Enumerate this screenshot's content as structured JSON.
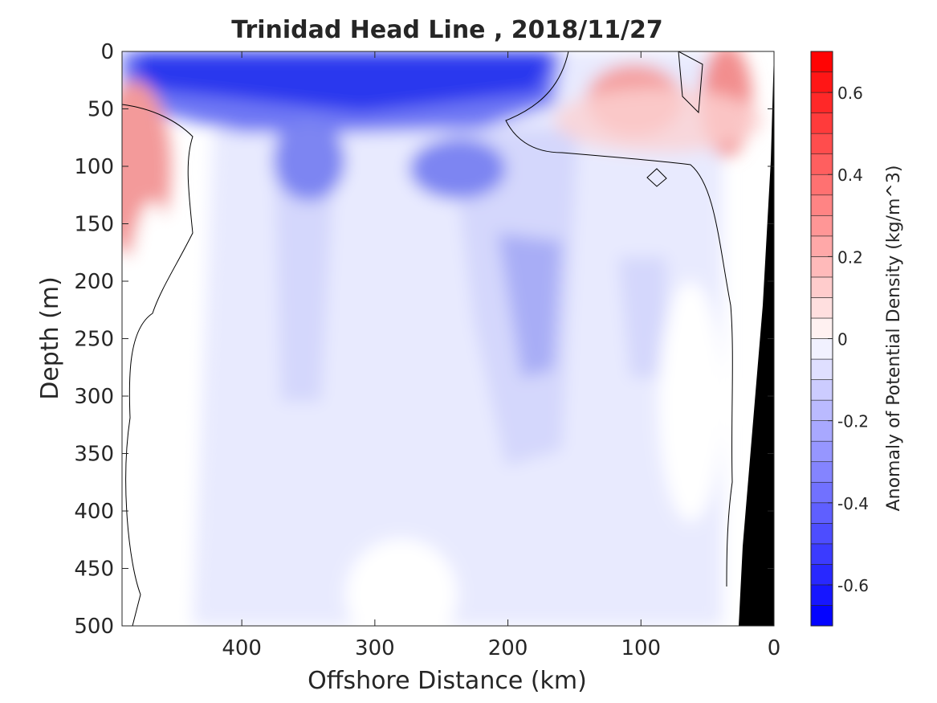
{
  "chart_data": {
    "type": "heatmap",
    "title": "Trinidad Head Line , 2018/11/27",
    "xlabel": "Offshore Distance (km)",
    "ylabel": "Depth (m)",
    "colorbar_label": "Anomaly of Potential Density (kg/m^3)",
    "xlim": [
      490,
      0
    ],
    "ylim": [
      500,
      0
    ],
    "x_ticks": [
      400,
      300,
      200,
      100,
      0
    ],
    "x_tick_labels": [
      "400",
      "300",
      "200",
      "100",
      "0"
    ],
    "y_ticks": [
      0,
      50,
      100,
      150,
      200,
      250,
      300,
      350,
      400,
      450,
      500
    ],
    "y_tick_labels": [
      "0",
      "50",
      "100",
      "150",
      "200",
      "250",
      "300",
      "350",
      "400",
      "450",
      "500"
    ],
    "colorbar_range": [
      -0.7,
      0.7
    ],
    "colorbar_step": 0.05,
    "colorbar_ticks": [
      0.6,
      0.4,
      0.2,
      0,
      -0.2,
      -0.4,
      -0.6
    ],
    "colorbar_tick_labels": [
      "0.6",
      "0.4",
      "0.2",
      "0",
      "-0.2",
      "-0.4",
      "-0.6"
    ],
    "grid": false,
    "colors": {
      "negative": "#0000ff",
      "positive": "#ff0000",
      "zero": "#ffffff",
      "bathymetry": "#000000"
    },
    "features": [
      {
        "name": "surface-negative-layer",
        "x_range": [
          490,
          160
        ],
        "depth_range": [
          0,
          70
        ],
        "anomaly": -0.6
      },
      {
        "name": "subsurface-negative-lobe-350km",
        "x_range": [
          400,
          300
        ],
        "depth_range": [
          70,
          160
        ],
        "anomaly": -0.4
      },
      {
        "name": "subsurface-negative-lobe-250km",
        "x_range": [
          300,
          190
        ],
        "depth_range": [
          70,
          150
        ],
        "anomaly": -0.4
      },
      {
        "name": "deep-negative-column-180km",
        "x_range": [
          220,
          150
        ],
        "depth_range": [
          180,
          450
        ],
        "anomaly": -0.25
      },
      {
        "name": "deep-negative-column-100km",
        "x_range": [
          130,
          70
        ],
        "depth_range": [
          180,
          300
        ],
        "anomaly": -0.15
      },
      {
        "name": "offshore-positive-lens",
        "x_range": [
          490,
          450
        ],
        "depth_range": [
          50,
          200
        ],
        "anomaly": 0.35
      },
      {
        "name": "nearshore-positive-patch-100km",
        "x_range": [
          150,
          60
        ],
        "depth_range": [
          0,
          100
        ],
        "anomaly": 0.4
      },
      {
        "name": "nearshore-positive-patch-30km",
        "x_range": [
          60,
          20
        ],
        "depth_range": [
          0,
          100
        ],
        "anomaly": 0.45
      }
    ],
    "bathymetry_x_at_depth": [
      [
        0,
        0
      ],
      [
        100,
        8
      ],
      [
        200,
        15
      ],
      [
        300,
        22
      ],
      [
        400,
        27
      ],
      [
        500,
        30
      ]
    ]
  }
}
